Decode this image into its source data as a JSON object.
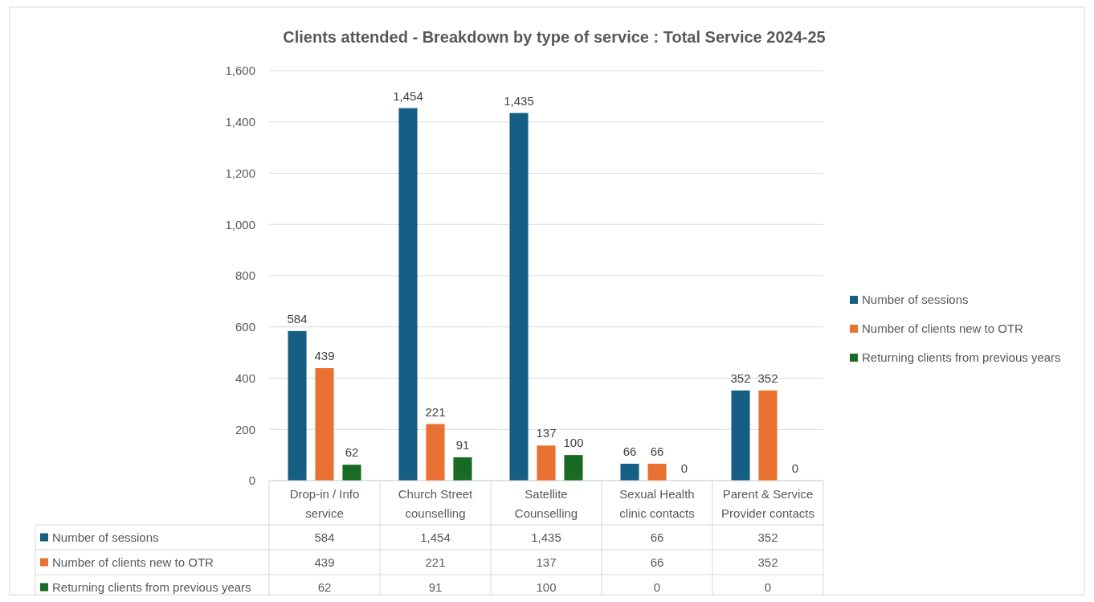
{
  "chart_data": {
    "type": "bar",
    "title": "Clients attended - Breakdown by type of service :  Total Service 2024-25",
    "categories": [
      "Drop-in / Info service",
      "Church Street counselling",
      "Satellite Counselling",
      "Sexual Health clinic contacts",
      "Parent & Service Provider contacts"
    ],
    "series": [
      {
        "name": "Number of sessions",
        "color": "#175e84",
        "values": [
          584,
          1454,
          1435,
          66,
          352
        ],
        "value_labels": [
          "584",
          "1,454",
          "1,435",
          "66",
          "352"
        ]
      },
      {
        "name": "Number of clients new to OTR",
        "color": "#e97132",
        "values": [
          439,
          221,
          137,
          66,
          352
        ],
        "value_labels": [
          "439",
          "221",
          "137",
          "66",
          "352"
        ]
      },
      {
        "name": "Returning clients from previous years",
        "color": "#196b24",
        "values": [
          62,
          91,
          100,
          0,
          0
        ],
        "value_labels": [
          "62",
          "91",
          "100",
          "0",
          "0"
        ]
      }
    ],
    "ylim": [
      0,
      1600
    ],
    "yticks": [
      {
        "value": 0,
        "label": "0"
      },
      {
        "value": 200,
        "label": "200"
      },
      {
        "value": 400,
        "label": "400"
      },
      {
        "value": 600,
        "label": "600"
      },
      {
        "value": 800,
        "label": "800"
      },
      {
        "value": 1000,
        "label": "1,000"
      },
      {
        "value": 1200,
        "label": "1,200"
      },
      {
        "value": 1400,
        "label": "1,400"
      },
      {
        "value": 1600,
        "label": "1,600"
      }
    ],
    "grid": "y",
    "legend": "right"
  }
}
